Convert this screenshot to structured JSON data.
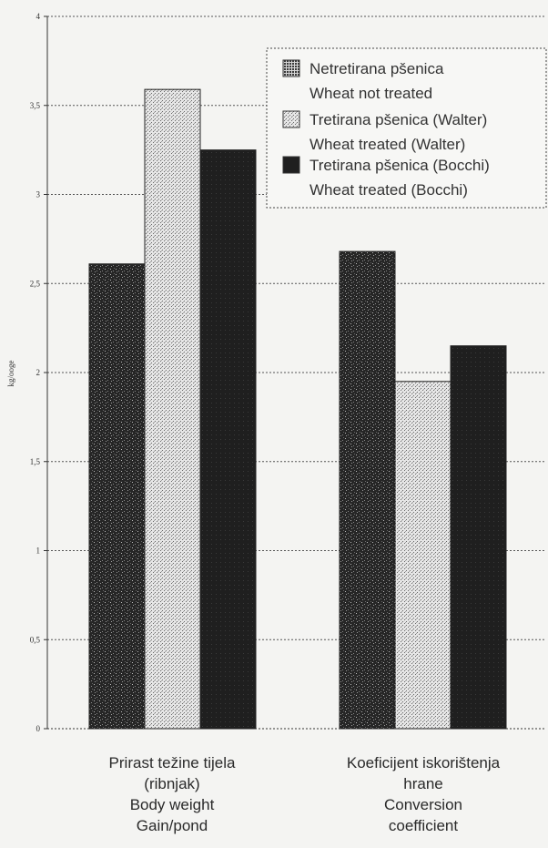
{
  "chart_data": {
    "type": "bar",
    "ylabel": "kg/ooge",
    "ylim": [
      0,
      4
    ],
    "yticks": [
      "0",
      "0,5",
      "1",
      "1,5",
      "2",
      "2,5",
      "3",
      "3,5",
      "4"
    ],
    "grid": true,
    "legend_position": "top-right",
    "categories": [
      [
        "Prirast težine tijela",
        "(ribnjak)",
        "Body weight",
        "Gain/pond"
      ],
      [
        "Koeficijent iskorištenja",
        "hrane",
        "Conversion",
        "coefficient"
      ]
    ],
    "series": [
      {
        "name": [
          "Netretirana pšenica",
          "Wheat not treated"
        ],
        "values": [
          2.61,
          2.68
        ],
        "pattern": "dark-speckle"
      },
      {
        "name": [
          "Tretirana pšenica (Walter)",
          "Wheat treated (Walter)"
        ],
        "values": [
          3.59,
          1.95
        ],
        "pattern": "light-hatch"
      },
      {
        "name": [
          "Tretirana pšenica (Bocchi)",
          "Wheat treated (Bocchi)"
        ],
        "values": [
          3.25,
          2.15
        ],
        "pattern": "solid-dark"
      }
    ]
  }
}
